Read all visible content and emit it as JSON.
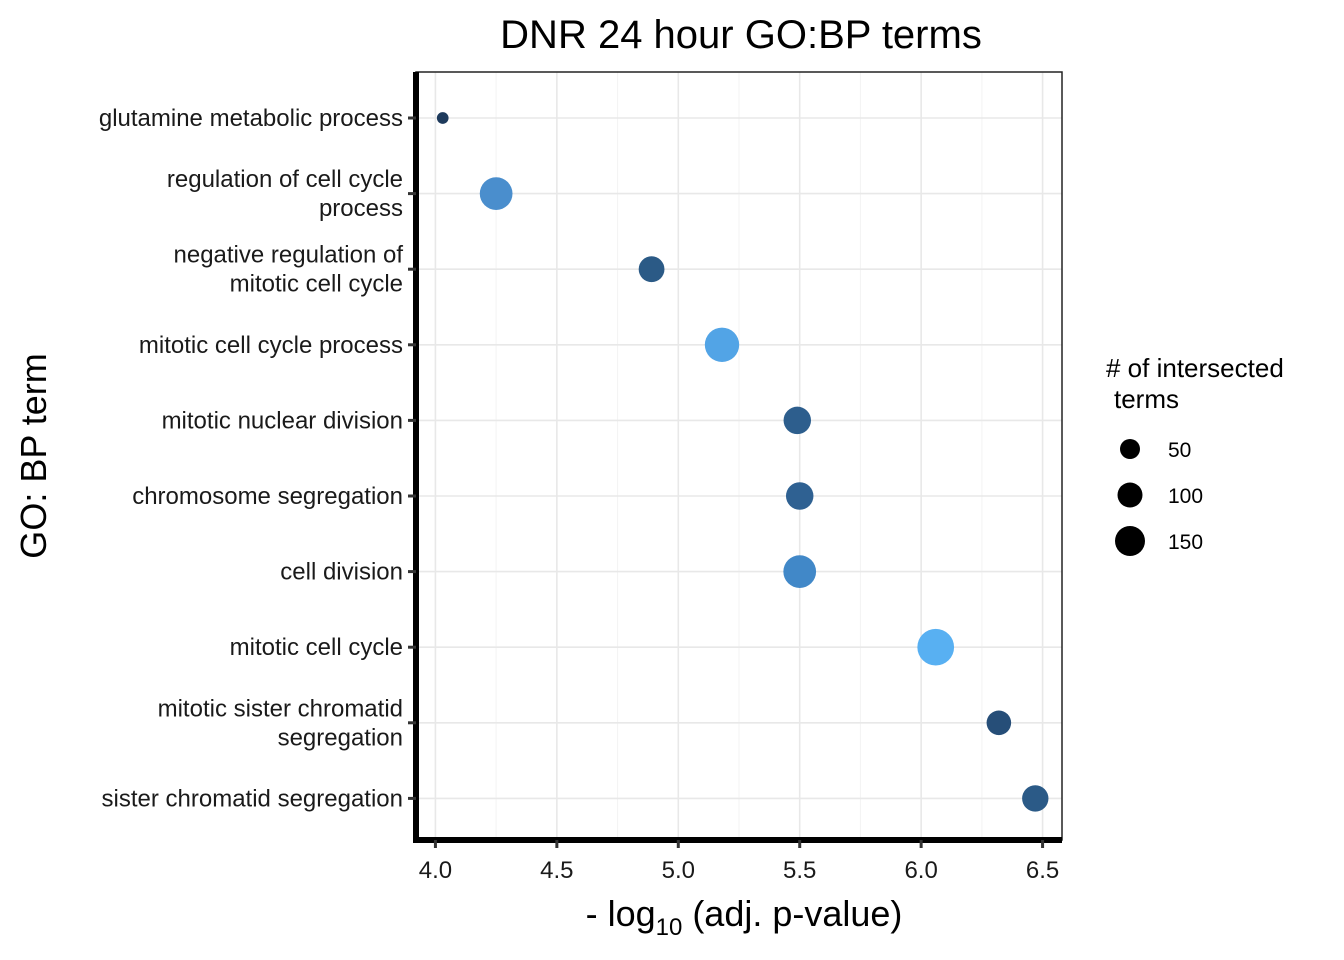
{
  "chart_data": {
    "type": "scatter",
    "title": "DNR 24 hour GO:BP terms",
    "xlabel": "- log10 (adj. p-value)",
    "ylabel": "GO: BP term",
    "xlim": [
      3.92,
      6.58
    ],
    "x_ticks": [
      4.0,
      4.5,
      5.0,
      5.5,
      6.0,
      6.5
    ],
    "x_tick_labels": [
      "4.0",
      "4.5",
      "5.0",
      "5.5",
      "6.0",
      "6.5"
    ],
    "grid": true,
    "legend_position": "right",
    "legend": {
      "title_lines": [
        "# of intersected",
        "terms"
      ],
      "entries": [
        {
          "label": "50",
          "value": 50
        },
        {
          "label": "100",
          "value": 100
        },
        {
          "label": "150",
          "value": 150
        }
      ]
    },
    "points": [
      {
        "term_lines": [
          "glutamine metabolic process"
        ],
        "x": 4.03,
        "count": 5,
        "color": "#1e3a5c"
      },
      {
        "term_lines": [
          "regulation of cell cycle",
          "process"
        ],
        "x": 4.25,
        "count": 150,
        "color": "#4a8ecd"
      },
      {
        "term_lines": [
          "negative regulation of",
          "mitotic cell cycle"
        ],
        "x": 4.89,
        "count": 80,
        "color": "#2b5a86"
      },
      {
        "term_lines": [
          "mitotic cell cycle process"
        ],
        "x": 5.18,
        "count": 170,
        "color": "#52a4e6"
      },
      {
        "term_lines": [
          "mitotic nuclear division"
        ],
        "x": 5.49,
        "count": 95,
        "color": "#2d5e8d"
      },
      {
        "term_lines": [
          "chromosome segregation"
        ],
        "x": 5.5,
        "count": 95,
        "color": "#2f6192"
      },
      {
        "term_lines": [
          "cell division"
        ],
        "x": 5.5,
        "count": 150,
        "color": "#4188c8"
      },
      {
        "term_lines": [
          "mitotic cell cycle"
        ],
        "x": 6.06,
        "count": 200,
        "color": "#58b0f2"
      },
      {
        "term_lines": [
          "mitotic sister chromatid",
          "segregation"
        ],
        "x": 6.32,
        "count": 70,
        "color": "#264e78"
      },
      {
        "term_lines": [
          "sister chromatid segregation"
        ],
        "x": 6.47,
        "count": 85,
        "color": "#2b5a87"
      }
    ]
  }
}
